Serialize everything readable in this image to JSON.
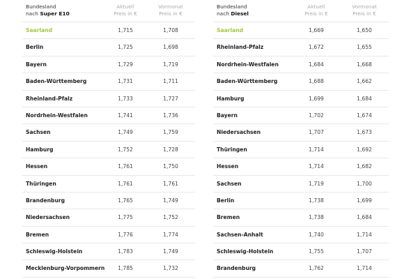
{
  "tables": [
    {
      "header": {
        "line1": "Bundesland",
        "line2_prefix": "nach ",
        "fuel": "Super E10",
        "col1_line1": "Aktuell",
        "col1_line2": "Preis in €",
        "col2_line1": "Vormonat",
        "col2_line2": "Preis in €"
      },
      "highlight_color": "#a3c740",
      "rows": [
        {
          "state": "Saarland",
          "current": "1,715",
          "previous": "1,708"
        },
        {
          "state": "Berlin",
          "current": "1,725",
          "previous": "1,698"
        },
        {
          "state": "Bayern",
          "current": "1,729",
          "previous": "1,719"
        },
        {
          "state": "Baden-Württemberg",
          "current": "1,731",
          "previous": "1,711"
        },
        {
          "state": "Rheinland-Pfalz",
          "current": "1,733",
          "previous": "1,727"
        },
        {
          "state": "Nordrhein-Westfalen",
          "current": "1,741",
          "previous": "1,736"
        },
        {
          "state": "Sachsen",
          "current": "1,749",
          "previous": "1,759"
        },
        {
          "state": "Hamburg",
          "current": "1,752",
          "previous": "1,728"
        },
        {
          "state": "Hessen",
          "current": "1,761",
          "previous": "1,750"
        },
        {
          "state": "Thüringen",
          "current": "1,761",
          "previous": "1,761"
        },
        {
          "state": "Brandenburg",
          "current": "1,765",
          "previous": "1,749"
        },
        {
          "state": "Niedersachsen",
          "current": "1,775",
          "previous": "1,752"
        },
        {
          "state": "Bremen",
          "current": "1,776",
          "previous": "1,774"
        },
        {
          "state": "Schleswig-Holstein",
          "current": "1,783",
          "previous": "1,749"
        },
        {
          "state": "Mecklenburg-Vorpommern",
          "current": "1,785",
          "previous": "1,732"
        }
      ]
    },
    {
      "header": {
        "line1": "Bundesland",
        "line2_prefix": "nach ",
        "fuel": "Diesel",
        "col1_line1": "Aktuell",
        "col1_line2": "Preis in €",
        "col2_line1": "Vormonat",
        "col2_line2": "Preis in €"
      },
      "highlight_color": "#a3c740",
      "rows": [
        {
          "state": "Saarland",
          "current": "1,669",
          "previous": "1,650"
        },
        {
          "state": "Rheinland-Pfalz",
          "current": "1,672",
          "previous": "1,655"
        },
        {
          "state": "Nordrhein-Westfalen",
          "current": "1,684",
          "previous": "1,668"
        },
        {
          "state": "Baden-Württemberg",
          "current": "1,688",
          "previous": "1,662"
        },
        {
          "state": "Hamburg",
          "current": "1,699",
          "previous": "1,684"
        },
        {
          "state": "Bayern",
          "current": "1,702",
          "previous": "1,674"
        },
        {
          "state": "Niedersachsen",
          "current": "1,707",
          "previous": "1,673"
        },
        {
          "state": "Thüringen",
          "current": "1,714",
          "previous": "1,692"
        },
        {
          "state": "Hessen",
          "current": "1,714",
          "previous": "1,682"
        },
        {
          "state": "Sachsen",
          "current": "1,719",
          "previous": "1,700"
        },
        {
          "state": "Berlin",
          "current": "1,738",
          "previous": "1,699"
        },
        {
          "state": "Bremen",
          "current": "1,738",
          "previous": "1,684"
        },
        {
          "state": "Sachsen-Anhalt",
          "current": "1,740",
          "previous": "1,714"
        },
        {
          "state": "Schleswig-Holstein",
          "current": "1,755",
          "previous": "1,707"
        },
        {
          "state": "Brandenburg",
          "current": "1,762",
          "previous": "1,714"
        }
      ]
    }
  ]
}
